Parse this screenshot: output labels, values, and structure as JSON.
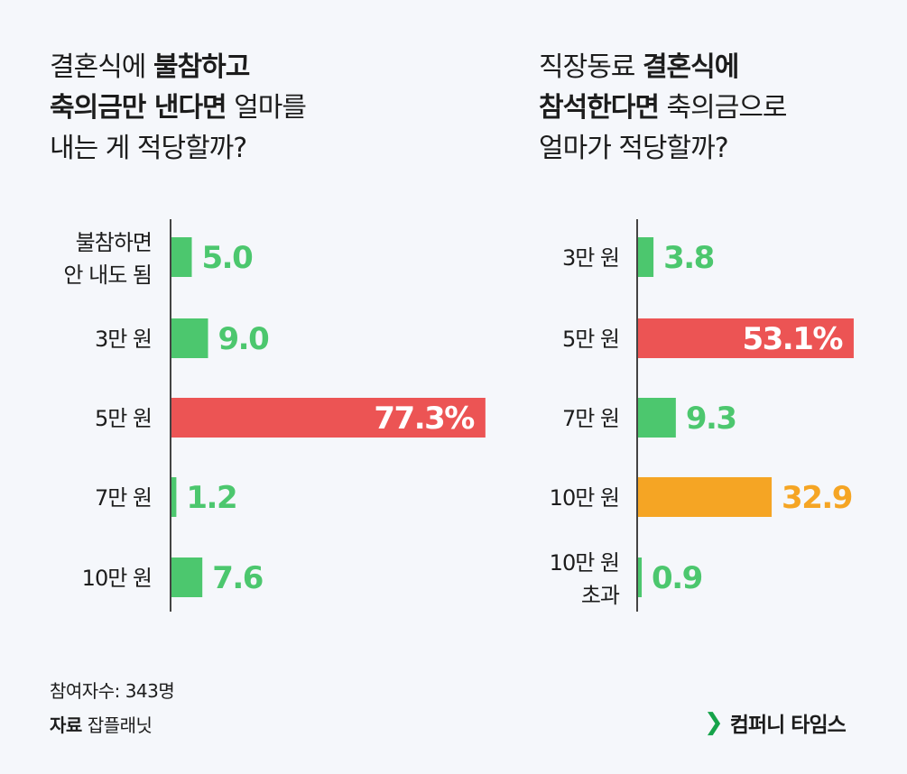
{
  "left_title": {
    "l1a": "결혼식에 ",
    "l1b": "불참하고",
    "l2a": "축의금만 낸다면",
    "l2b": " 얼마를",
    "l3": "내는 게 적당할까?"
  },
  "right_title": {
    "l1a": "직장동료 ",
    "l1b": "결혼식에",
    "l2a": "참석한다면",
    "l2b": " 축의금으로",
    "l3": "얼마가 적당할까?"
  },
  "colors": {
    "green": "#4cc76e",
    "red": "#ec5454",
    "orange": "#f5a524",
    "axis": "#444444"
  },
  "chart_data": [
    {
      "type": "bar",
      "orientation": "horizontal",
      "categories": [
        [
          "불참하면",
          "안 내도 됨"
        ],
        [
          "3만 원"
        ],
        [
          "5만 원"
        ],
        [
          "7만 원"
        ],
        [
          "10만 원"
        ]
      ],
      "values": [
        5.0,
        9.0,
        77.3,
        1.2,
        7.6
      ],
      "labels": [
        "5.0",
        "9.0",
        "77.3%",
        "1.2",
        "7.6"
      ],
      "colors": [
        "green",
        "green",
        "red",
        "green",
        "green"
      ],
      "highlight_inside": [
        false,
        false,
        true,
        false,
        false
      ],
      "unit": "%"
    },
    {
      "type": "bar",
      "orientation": "horizontal",
      "categories": [
        [
          "3만 원"
        ],
        [
          "5만 원"
        ],
        [
          "7만 원"
        ],
        [
          "10만 원"
        ],
        [
          "10만 원",
          "초과"
        ]
      ],
      "values": [
        3.8,
        53.1,
        9.3,
        32.9,
        0.9
      ],
      "labels": [
        "3.8",
        "53.1%",
        "9.3",
        "32.9",
        "0.9"
      ],
      "colors": [
        "green",
        "red",
        "green",
        "orange",
        "green"
      ],
      "highlight_inside": [
        false,
        true,
        false,
        false,
        false
      ],
      "unit": "%"
    }
  ],
  "footer": {
    "participants": "참여자수: 343명",
    "source_label": "자료",
    "source": "잡플래닛",
    "brand": "컴퍼니 타임스",
    "brand_mark": "❯"
  }
}
